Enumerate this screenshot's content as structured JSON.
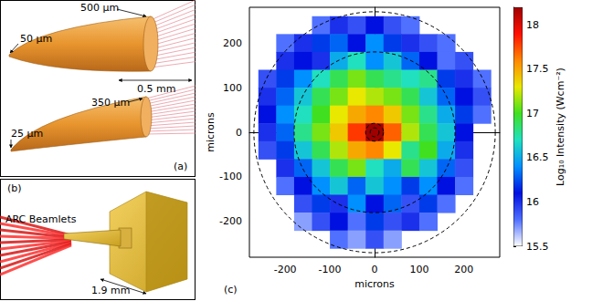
{
  "panel_a": {
    "label": "(a)",
    "annotations": {
      "top_base": "500 μm",
      "top_tip": "50 μm",
      "length": "0.5 mm",
      "bottom_base": "350 μm",
      "bottom_tip": "25 μm"
    }
  },
  "panel_b": {
    "label": "(b)",
    "annotations": {
      "beams": "ARC Beamlets",
      "length": "1.9 mm"
    }
  },
  "panel_c": {
    "label": "(c)"
  },
  "chart_data": {
    "type": "heatmap",
    "x_label": "microns",
    "y_label": "microns",
    "xlim": [
      -280,
      280
    ],
    "ylim": [
      -280,
      280
    ],
    "xticks": [
      -200,
      -100,
      0,
      100,
      200
    ],
    "yticks": [
      -200,
      -100,
      0,
      100,
      200
    ],
    "grid": false,
    "x": [
      -240,
      -200,
      -160,
      -120,
      -80,
      -40,
      0,
      40,
      80,
      120,
      160,
      200,
      240
    ],
    "y": [
      240,
      200,
      160,
      120,
      80,
      40,
      0,
      -40,
      -80,
      -120,
      -160,
      -200,
      -240
    ],
    "cell_size": 40,
    "cells": [
      [
        null,
        null,
        null,
        15.8,
        16.0,
        15.9,
        16.1,
        15.9,
        15.8,
        null,
        null,
        null,
        null
      ],
      [
        null,
        15.8,
        16.0,
        16.2,
        16.3,
        16.1,
        16.4,
        16.2,
        16.0,
        15.9,
        15.8,
        null,
        null
      ],
      [
        null,
        16.0,
        16.1,
        16.0,
        16.5,
        16.7,
        16.4,
        16.6,
        16.3,
        16.1,
        15.8,
        15.9,
        null
      ],
      [
        15.9,
        16.2,
        16.4,
        16.7,
        16.9,
        17.1,
        16.9,
        16.8,
        16.7,
        16.8,
        16.2,
        16.0,
        15.8
      ],
      [
        16.0,
        16.3,
        16.6,
        16.9,
        17.1,
        17.3,
        17.2,
        17.1,
        16.9,
        16.6,
        16.3,
        16.1,
        15.9
      ],
      [
        16.1,
        16.4,
        16.7,
        17.0,
        17.3,
        17.5,
        17.6,
        17.4,
        17.1,
        16.8,
        16.5,
        16.2,
        15.8
      ],
      [
        16.0,
        16.3,
        16.8,
        17.1,
        17.4,
        17.8,
        18.2,
        17.7,
        17.2,
        16.9,
        16.6,
        16.1,
        null
      ],
      [
        15.9,
        16.2,
        16.6,
        16.9,
        17.2,
        17.5,
        17.6,
        17.3,
        16.8,
        17.0,
        16.5,
        16.0,
        null
      ],
      [
        null,
        16.0,
        16.3,
        16.6,
        16.9,
        17.1,
        16.7,
        16.5,
        16.9,
        16.6,
        16.3,
        15.9,
        null
      ],
      [
        null,
        15.8,
        16.1,
        16.4,
        16.6,
        16.3,
        16.6,
        16.4,
        16.2,
        16.4,
        16.1,
        15.8,
        null
      ],
      [
        null,
        null,
        15.9,
        16.2,
        16.0,
        16.4,
        16.1,
        16.3,
        15.9,
        16.2,
        15.8,
        null,
        null
      ],
      [
        null,
        null,
        15.7,
        15.9,
        16.1,
        15.8,
        16.2,
        15.9,
        16.0,
        15.8,
        null,
        null,
        null
      ],
      [
        null,
        null,
        null,
        null,
        15.8,
        15.7,
        15.9,
        15.7,
        null,
        null,
        null,
        null,
        null
      ]
    ],
    "colorbar": {
      "label": "Log₁₀ Intensity (Wcm⁻²)",
      "range": [
        15.5,
        18.2
      ],
      "ticks": [
        15.5,
        16,
        16.5,
        17,
        17.5,
        18
      ]
    },
    "circle_center": [
      0,
      0
    ],
    "circle_radii": [
      10,
      20,
      180,
      270
    ]
  }
}
